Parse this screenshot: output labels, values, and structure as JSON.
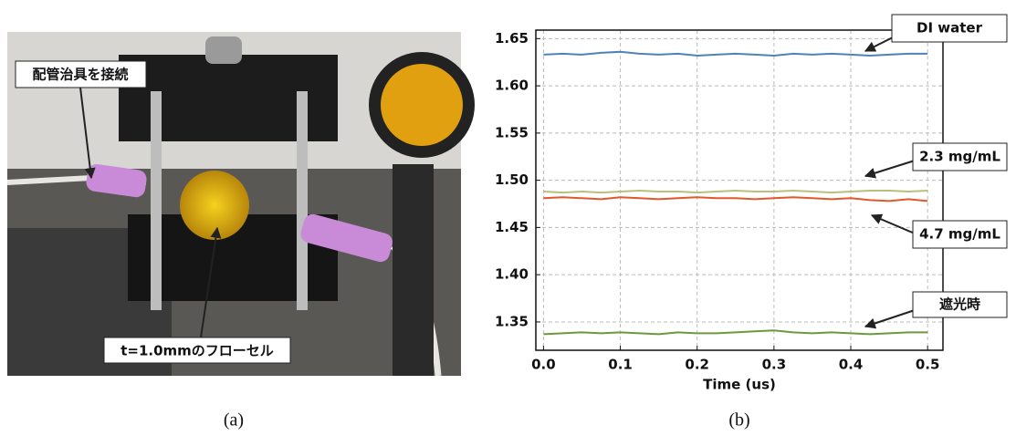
{
  "photo": {
    "labels": [
      "配管治具を接続",
      "t=1.0mmのフローセル"
    ],
    "caption": "(a)"
  },
  "chart_data": {
    "type": "line",
    "caption": "(b)",
    "x_label": "Time (us)",
    "x": [
      0,
      0.025,
      0.05,
      0.075,
      0.1,
      0.125,
      0.15,
      0.175,
      0.2,
      0.225,
      0.25,
      0.275,
      0.3,
      0.325,
      0.35,
      0.375,
      0.4,
      0.425,
      0.45,
      0.475,
      0.5
    ],
    "series": [
      {
        "name": "DI water",
        "color": "#4f83b8",
        "values": [
          1.633,
          1.634,
          1.633,
          1.635,
          1.636,
          1.634,
          1.633,
          1.634,
          1.632,
          1.633,
          1.634,
          1.633,
          1.632,
          1.634,
          1.633,
          1.634,
          1.633,
          1.632,
          1.633,
          1.634,
          1.634
        ]
      },
      {
        "name": "2.3 mg/mL",
        "color": "#b9c07e",
        "values": [
          1.488,
          1.487,
          1.488,
          1.487,
          1.488,
          1.489,
          1.488,
          1.488,
          1.487,
          1.488,
          1.489,
          1.488,
          1.488,
          1.489,
          1.488,
          1.487,
          1.488,
          1.489,
          1.489,
          1.488,
          1.489
        ]
      },
      {
        "name": "4.7 mg/mL",
        "color": "#e0582c",
        "values": [
          1.481,
          1.482,
          1.481,
          1.48,
          1.482,
          1.481,
          1.48,
          1.481,
          1.482,
          1.481,
          1.481,
          1.48,
          1.481,
          1.482,
          1.481,
          1.48,
          1.481,
          1.479,
          1.478,
          1.48,
          1.478
        ]
      },
      {
        "name": "遮光時",
        "color": "#6b9a3c",
        "values": [
          1.337,
          1.338,
          1.339,
          1.338,
          1.339,
          1.338,
          1.337,
          1.339,
          1.338,
          1.338,
          1.339,
          1.34,
          1.341,
          1.339,
          1.338,
          1.339,
          1.338,
          1.337,
          1.338,
          1.339,
          1.339
        ]
      }
    ],
    "xlim": [
      -0.01,
      0.52
    ],
    "ylim": [
      1.32,
      1.659
    ],
    "xticks": [
      {
        "value": 0,
        "label": "0.0"
      },
      0.1,
      0.2,
      0.3,
      0.4,
      0.5
    ],
    "yticks": [
      1.35,
      {
        "value": 1.4,
        "label": "1.40"
      },
      1.45,
      {
        "value": 1.5,
        "label": "1.50"
      },
      1.55,
      {
        "value": 1.6,
        "label": "1.60"
      },
      1.65
    ],
    "grid": true
  }
}
